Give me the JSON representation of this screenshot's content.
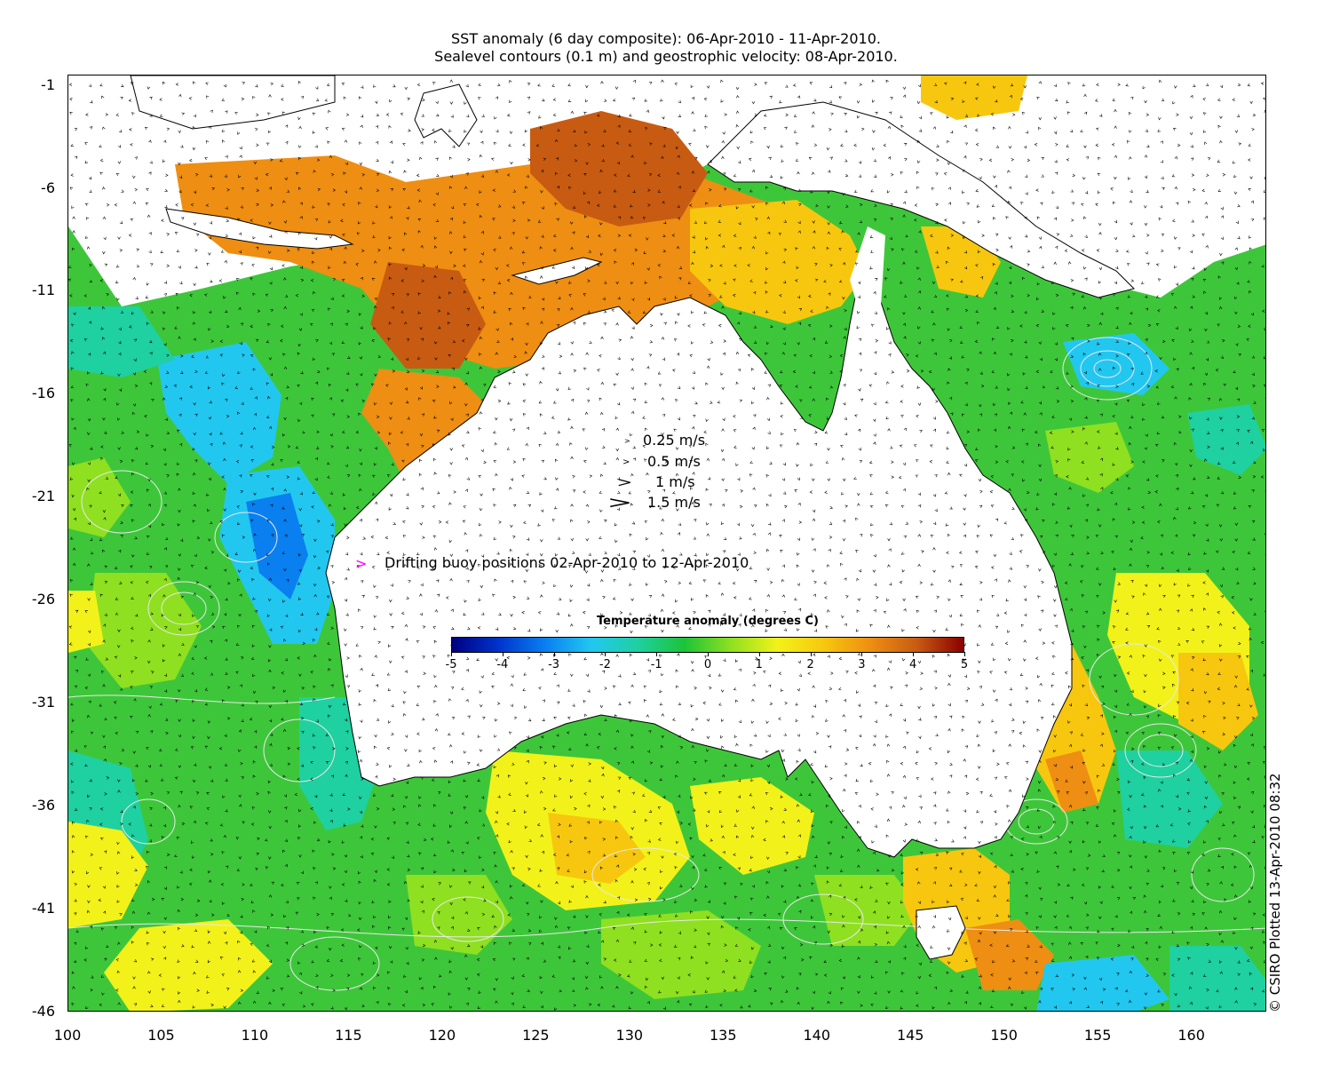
{
  "title": {
    "line1": "SST anomaly (6 day composite): 06-Apr-2010 - 11-Apr-2010.",
    "line2": "Sealevel contours (0.1 m) and geostrophic velocity: 08-Apr-2010."
  },
  "axes": {
    "y_ticks": [
      "-1",
      "-6",
      "-11",
      "-16",
      "-21",
      "-26",
      "-31",
      "-36",
      "-41",
      "-46"
    ],
    "x_ticks": [
      "100",
      "105",
      "110",
      "115",
      "120",
      "125",
      "130",
      "135",
      "140",
      "145",
      "150",
      "155",
      "160"
    ],
    "lon_range": [
      100,
      164
    ],
    "lat_range": [
      -46,
      -0.5
    ]
  },
  "velocity_legend": [
    {
      "label": "0.25 m/s",
      "speed": 0.25
    },
    {
      "label": "0.5 m/s",
      "speed": 0.5
    },
    {
      "label": "1 m/s",
      "speed": 1
    },
    {
      "label": "1.5 m/s",
      "speed": 1.5
    }
  ],
  "buoy_legend": {
    "marker": ">",
    "label": "Drifting buoy positions 02-Apr-2010 to 12-Apr-2010",
    "color": "#ff00ff"
  },
  "colorbar": {
    "title": "Temperature anomaly (degrees C)",
    "ticks": [
      "-5",
      "-4",
      "-3",
      "-2",
      "-1",
      "0",
      "1",
      "2",
      "3",
      "4",
      "5"
    ],
    "range": [
      -5,
      5
    ],
    "colors": [
      "#000080",
      "#0033cc",
      "#0a7ff0",
      "#22c7f0",
      "#1fd0a0",
      "#1dc338",
      "#8fe020",
      "#f2f21a",
      "#f7c70f",
      "#ee8e12",
      "#c85b12",
      "#8a0000"
    ]
  },
  "copyright": "© CSIRO Plotted 13-Apr-2010 08:32",
  "map_colors": {
    "land": "#ffffff",
    "coast": "#000000",
    "contour": "#e8e8e8",
    "no_data": "#ffffff"
  }
}
